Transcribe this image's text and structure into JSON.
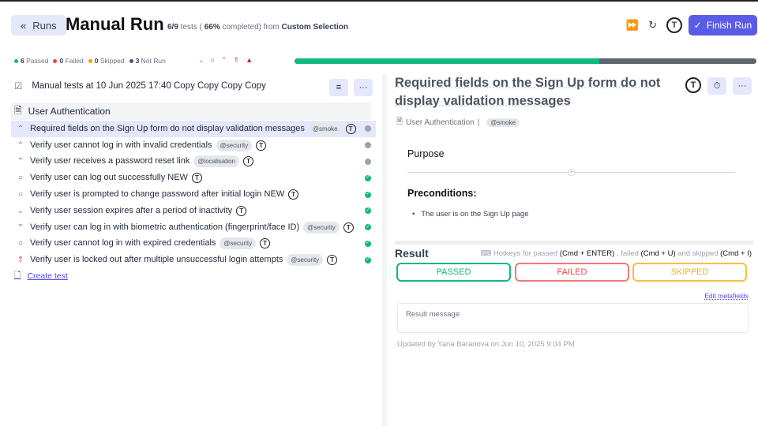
{
  "header": {
    "runs_label": "Runs",
    "title": "Manual Run",
    "subtitle_counts": "6/9",
    "subtitle_tests": " tests ( ",
    "subtitle_pct": "66%",
    "subtitle_completed": " completed) from ",
    "subtitle_source": "Custom Selection",
    "finish_label": "Finish Run",
    "avatar_letter": "T"
  },
  "stats": {
    "passed": "6",
    "passed_label": "Passed",
    "failed": "0",
    "failed_label": "Failed",
    "skipped": "0",
    "skipped_label": "Skipped",
    "notrun": "3",
    "notrun_label": "Not Run"
  },
  "progress": {
    "percent": 66,
    "color": "#10b981"
  },
  "left": {
    "run_title": "Manual tests at 10 Jun 2025 17:40 Copy Copy Copy Copy",
    "suite": "User Authentication",
    "create_test": "Create test",
    "tests": [
      {
        "title": "Required fields on the Sign Up form do not display validation messages",
        "tag": "@smoke",
        "priority": "high",
        "status": "not-run",
        "selected": true
      },
      {
        "title": "Verify user cannot log in with invalid credentials",
        "tag": "@security",
        "priority": "high",
        "status": "not-run"
      },
      {
        "title": "Verify user receives a password reset link",
        "tag": "@localisation",
        "priority": "high",
        "status": "not-run"
      },
      {
        "title": "Verify user can log out successfully NEW",
        "tag": "",
        "priority": "normal",
        "status": "passed"
      },
      {
        "title": "Verify user is prompted to change password after initial login NEW",
        "tag": "",
        "priority": "normal",
        "status": "passed"
      },
      {
        "title": "Verify user session expires after a period of inactivity",
        "tag": "",
        "priority": "low",
        "status": "passed"
      },
      {
        "title": "Verify user can log in with biometric authentication (fingerprint/face ID)",
        "tag": "@security",
        "priority": "high",
        "status": "passed"
      },
      {
        "title": "Verify user cannot log in with expired credentials",
        "tag": "@security",
        "priority": "normal",
        "status": "passed"
      },
      {
        "title": "Verify user is locked out after multiple unsuccessful login attempts",
        "tag": "@security",
        "priority": "critical",
        "status": "passed"
      }
    ]
  },
  "right": {
    "title": "Required fields on the Sign Up form do not display validation messages",
    "suite": "User Authentication",
    "tag": "@smoke",
    "purpose": "Purpose",
    "preconditions": "Preconditions:",
    "precondition_item": "The user is on the Sign Up page",
    "result": "Result",
    "hk1": "Hotkeys for passed ",
    "hk1k": "(Cmd + ENTER)",
    "hk2": " , failed ",
    "hk2k": "(Cmd + U)",
    "hk3": " and skipped ",
    "hk3k": "(Cmd + I)",
    "passed": "PASSED",
    "failed": "FAILED",
    "skipped": "SKIPPED",
    "edit_metafields": "Edit metafields",
    "result_placeholder": "Result message",
    "updated": "Updated by Yana Baranova on Jun 10, 2025 9:04 PM"
  },
  "colors": {
    "passed": "#10b981",
    "failed": "#ef4444",
    "skipped": "#f59e0b",
    "accent": "#5b5ce6"
  }
}
